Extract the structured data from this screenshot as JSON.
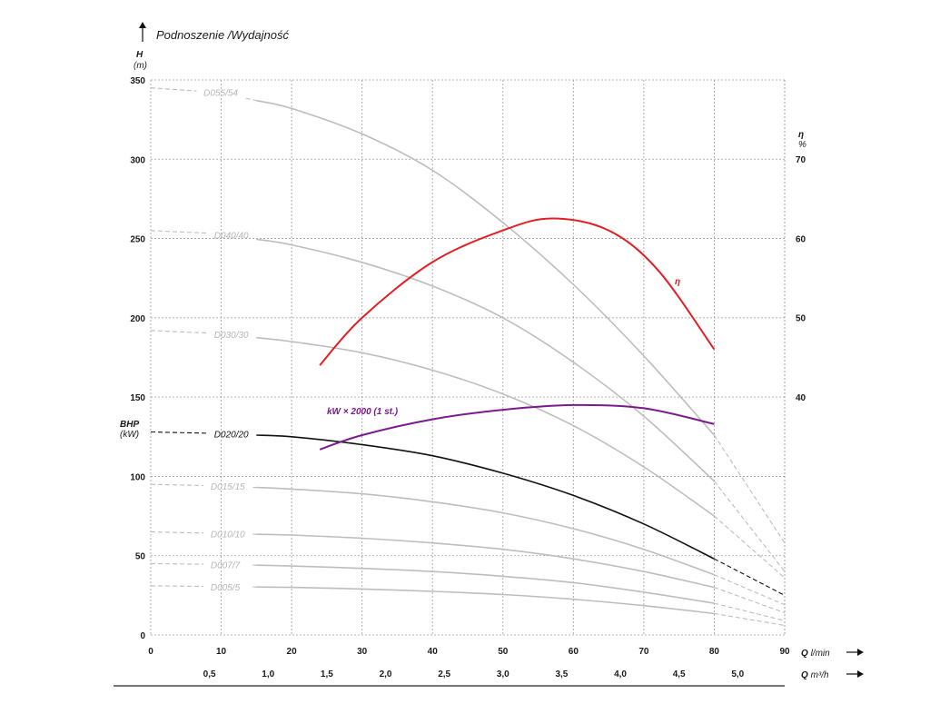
{
  "chart_data": {
    "type": "line",
    "title": "Podnoszenie /Wydajność",
    "y_left": {
      "label": "H",
      "unit": "(m)",
      "ylim": [
        0,
        350
      ],
      "ticks": [
        0,
        50,
        100,
        150,
        200,
        250,
        300,
        350
      ]
    },
    "y_right": {
      "label": "η",
      "unit": "%",
      "ylim": [
        0,
        100
      ],
      "ticks": [
        40,
        50,
        60,
        70
      ]
    },
    "bhp_label": {
      "label": "BHP",
      "unit": "(kW)"
    },
    "x_primary": {
      "label": "Q",
      "unit": "l/min",
      "xlim": [
        0,
        90
      ],
      "ticks": [
        0,
        10,
        20,
        30,
        40,
        50,
        60,
        70,
        80,
        90
      ]
    },
    "x_secondary": {
      "label": "Q",
      "unit": "m³/h",
      "ticks": [
        "0,5",
        "1,0",
        "1,5",
        "2,0",
        "2,5",
        "3,0",
        "3,5",
        "4,0",
        "4,5",
        "5,0"
      ],
      "tick_values": [
        0.5,
        1.0,
        1.5,
        2.0,
        2.5,
        3.0,
        3.5,
        4.0,
        4.5,
        5.0
      ]
    },
    "grid": true,
    "series": [
      {
        "name": "D055/54",
        "color": "#bdbdbd",
        "x": [
          0,
          10,
          20,
          30,
          40,
          50,
          60,
          70,
          80,
          90
        ],
        "y": [
          345,
          342,
          332,
          316,
          293,
          260,
          221,
          176,
          126,
          58
        ]
      },
      {
        "name": "D040/40",
        "color": "#bdbdbd",
        "x": [
          0,
          10,
          20,
          30,
          40,
          50,
          60,
          70,
          80,
          90
        ],
        "y": [
          255,
          253,
          246,
          235,
          220,
          200,
          172,
          138,
          97,
          40
        ]
      },
      {
        "name": "D030/30",
        "color": "#bdbdbd",
        "x": [
          0,
          10,
          20,
          30,
          40,
          50,
          60,
          70,
          80,
          90
        ],
        "y": [
          192,
          190,
          185,
          178,
          167,
          152,
          132,
          106,
          75,
          36
        ]
      },
      {
        "name": "D020/20",
        "color": "#111111",
        "x": [
          0,
          10,
          20,
          30,
          40,
          50,
          60,
          70,
          80,
          90
        ],
        "y": [
          128,
          127,
          125,
          120,
          113,
          102,
          88,
          70,
          48,
          25
        ]
      },
      {
        "name": "D015/15",
        "color": "#bdbdbd",
        "x": [
          0,
          10,
          20,
          30,
          40,
          50,
          60,
          70,
          80,
          90
        ],
        "y": [
          95,
          94,
          92,
          89,
          84,
          77,
          67,
          54,
          38,
          19
        ]
      },
      {
        "name": "D010/10",
        "color": "#bdbdbd",
        "x": [
          0,
          10,
          20,
          30,
          40,
          50,
          60,
          70,
          80,
          90
        ],
        "y": [
          65,
          64,
          63,
          61,
          58,
          54,
          48,
          40,
          30,
          14
        ]
      },
      {
        "name": "D007/7",
        "color": "#bdbdbd",
        "x": [
          0,
          10,
          20,
          30,
          40,
          50,
          60,
          70,
          80,
          90
        ],
        "y": [
          45,
          44.5,
          43.5,
          42,
          40,
          37,
          33,
          27,
          20,
          9
        ]
      },
      {
        "name": "D005/5",
        "color": "#bdbdbd",
        "x": [
          0,
          10,
          20,
          30,
          40,
          50,
          60,
          70,
          80,
          90
        ],
        "y": [
          31,
          30.5,
          30,
          29,
          27.5,
          25.5,
          22.5,
          18.5,
          13.5,
          6
        ]
      },
      {
        "name": "η",
        "color": "#e31e24",
        "axis": "right",
        "x": [
          24,
          30,
          40,
          50,
          57,
          65,
          72,
          80
        ],
        "y": [
          44,
          50,
          57,
          61,
          62.5,
          61,
          56,
          46
        ]
      },
      {
        "name": "kW × 2000 (1 st.)",
        "color": "#7b1a8c",
        "axis": "left",
        "x": [
          24,
          30,
          40,
          50,
          60,
          70,
          80
        ],
        "y": [
          117,
          126,
          136,
          142,
          145,
          143,
          133
        ]
      }
    ]
  }
}
